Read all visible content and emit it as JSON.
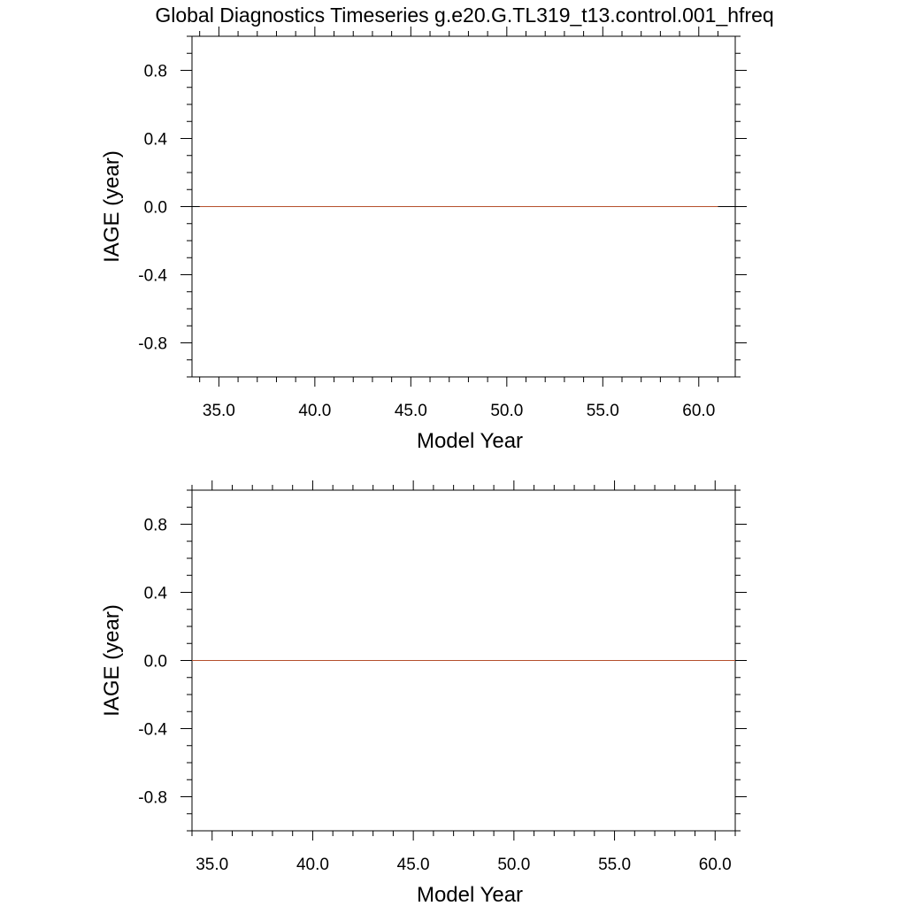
{
  "title": "Global Diagnostics Timeseries g.e20.G.TL319_t13.control.001_hfreq",
  "colors": {
    "series": "#b5502d",
    "axes": "#000000",
    "zero_line": "#000000"
  },
  "chart_data": [
    {
      "type": "line",
      "xlabel": "Model Year",
      "ylabel": "IAGE (year)",
      "xlim": [
        33.6,
        61.9
      ],
      "ylim": [
        -1.0,
        1.0
      ],
      "xticks": [
        35,
        40,
        45,
        50,
        55,
        60
      ],
      "xtick_labels": [
        "35.0",
        "40.0",
        "45.0",
        "50.0",
        "55.0",
        "60.0"
      ],
      "yticks": [
        -0.8,
        -0.4,
        0.0,
        0.4,
        0.8
      ],
      "ytick_labels": [
        "-0.8",
        "-0.4",
        "0.0",
        "0.4",
        "0.8"
      ],
      "grid": false,
      "series": [
        {
          "x": [
            34.0,
            61.0
          ],
          "y": [
            0.0,
            0.0
          ]
        }
      ]
    },
    {
      "type": "line",
      "xlabel": "Model Year",
      "ylabel": "IAGE (year)",
      "xlim": [
        34.0,
        61.0
      ],
      "ylim": [
        -1.0,
        1.0
      ],
      "xticks": [
        35,
        40,
        45,
        50,
        55,
        60
      ],
      "xtick_labels": [
        "35.0",
        "40.0",
        "45.0",
        "50.0",
        "55.0",
        "60.0"
      ],
      "yticks": [
        -0.8,
        -0.4,
        0.0,
        0.4,
        0.8
      ],
      "ytick_labels": [
        "-0.8",
        "-0.4",
        "0.0",
        "0.4",
        "0.8"
      ],
      "grid": false,
      "series": [
        {
          "x": [
            34.0,
            61.0
          ],
          "y": [
            0.0,
            0.0
          ]
        }
      ]
    }
  ]
}
